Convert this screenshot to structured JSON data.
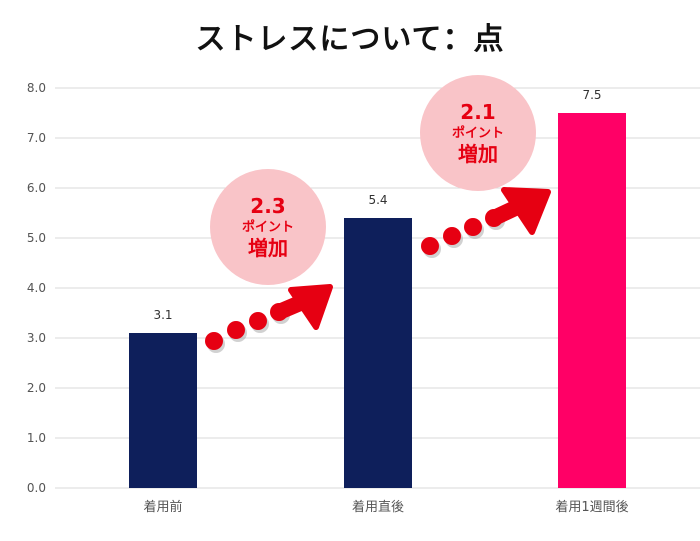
{
  "chart_data": {
    "type": "bar",
    "title": "ストレスについて：点",
    "categories": [
      "着用前",
      "着用直後",
      "着用1週間後"
    ],
    "values": [
      3.1,
      5.4,
      7.5
    ],
    "value_labels": [
      "3.1",
      "5.4",
      "7.5"
    ],
    "bar_colors": [
      "#0e1f5b",
      "#0e1f5b",
      "#ff0066"
    ],
    "ylim": [
      0,
      8
    ],
    "yticks": [
      "0.0",
      "1.0",
      "2.0",
      "3.0",
      "4.0",
      "5.0",
      "6.0",
      "7.0",
      "8.0"
    ],
    "grid": true,
    "annotations": [
      {
        "value": "2.3",
        "line1": "ポイント",
        "line2": "増加",
        "from": 0,
        "to": 1
      },
      {
        "value": "2.1",
        "line1": "ポイント",
        "line2": "増加",
        "from": 1,
        "to": 2
      }
    ],
    "colors": {
      "bar_primary": "#0e1f5b",
      "bar_accent": "#ff0066",
      "bubble": "#f9c4c8",
      "arrow": "#e60012",
      "annotation_text": "#e60012",
      "grid": "#d9d9d9",
      "axis_text": "#555555"
    }
  }
}
